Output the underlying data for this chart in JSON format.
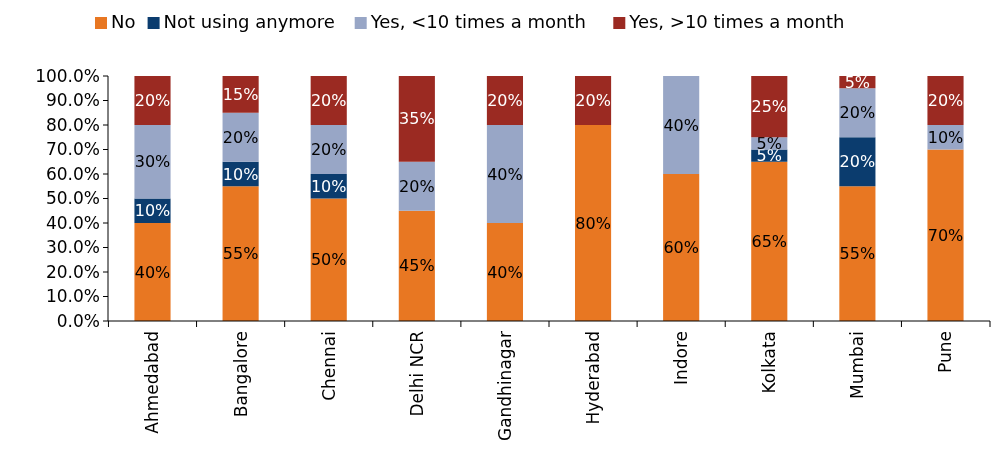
{
  "chart_data": {
    "type": "bar",
    "stacked": true,
    "legend": "top",
    "grid": false,
    "categories": [
      "Ahmedabad",
      "Bangalore",
      "Chennai",
      "Delhi NCR",
      "Gandhinagar",
      "Hyderabad",
      "Indore",
      "Kolkata",
      "Mumbai",
      "Pune"
    ],
    "ylim": [
      0,
      100
    ],
    "yticks": [
      {
        "value": 0,
        "label": "0.0%"
      },
      {
        "value": 10,
        "label": "10.0%"
      },
      {
        "value": 20,
        "label": "20.0%"
      },
      {
        "value": 30,
        "label": "30.0%"
      },
      {
        "value": 40,
        "label": "40.0%"
      },
      {
        "value": 50,
        "label": "50.0%"
      },
      {
        "value": 60,
        "label": "60.0%"
      },
      {
        "value": 70,
        "label": "70.0%"
      },
      {
        "value": 80,
        "label": "80.0%"
      },
      {
        "value": 90,
        "label": "90.0%"
      },
      {
        "value": 100,
        "label": "100.0%"
      }
    ],
    "series": [
      {
        "name": "No",
        "color": "#e87722",
        "values": [
          40,
          55,
          50,
          45,
          40,
          80,
          60,
          65,
          55,
          70
        ],
        "value_labels": [
          "40%",
          "55%",
          "50%",
          "45%",
          "40%",
          "80%",
          "60%",
          "65%",
          "55%",
          "70%"
        ]
      },
      {
        "name": "Not using anymore",
        "color": "#0b3c6e",
        "values": [
          10,
          10,
          10,
          0,
          0,
          0,
          0,
          5,
          20,
          0
        ],
        "value_labels": [
          "10%",
          "10%",
          "10%",
          null,
          null,
          null,
          null,
          "5%",
          "20%",
          null
        ]
      },
      {
        "name": "Yes, <10 times a month",
        "color": "#98a6c6",
        "values": [
          30,
          20,
          20,
          20,
          40,
          0,
          40,
          5,
          20,
          10
        ],
        "value_labels": [
          "30%",
          "20%",
          "20%",
          "20%",
          "40%",
          null,
          "40%",
          "5%",
          "20%",
          "10%"
        ]
      },
      {
        "name": "Yes, >10 times a month",
        "color": "#9b2a22",
        "values": [
          20,
          15,
          20,
          35,
          20,
          20,
          0,
          25,
          5,
          20
        ],
        "value_labels": [
          "20%",
          "15%",
          "20%",
          "35%",
          "20%",
          "20%",
          null,
          "25%",
          "5%",
          "20%"
        ]
      }
    ]
  }
}
